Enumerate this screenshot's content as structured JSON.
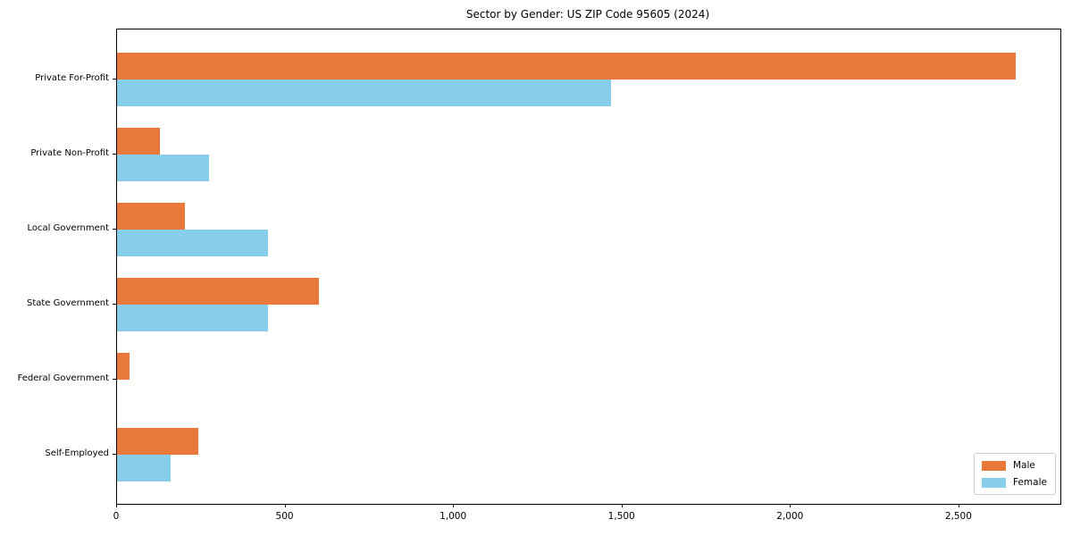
{
  "chart_data": {
    "type": "bar",
    "orientation": "horizontal",
    "title": "Sector by Gender: US ZIP Code 95605 (2024)",
    "categories": [
      "Private For-Profit",
      "Private Non-Profit",
      "Local Government",
      "State Government",
      "Federal Government",
      "Self-Employed"
    ],
    "series": [
      {
        "name": "Male",
        "color": "#E8793A",
        "values": [
          2667,
          126,
          202,
          600,
          37,
          241
        ]
      },
      {
        "name": "Female",
        "color": "#87CEEB",
        "values": [
          1467,
          274,
          449,
          447,
          0,
          159
        ]
      }
    ],
    "xlabel": "",
    "ylabel": "",
    "xlim": [
      0,
      2800
    ],
    "x_tick_values": [
      0,
      500,
      1000,
      1500,
      2000,
      2500
    ],
    "x_tick_labels": [
      "0",
      "500",
      "1,000",
      "1,500",
      "2,000",
      "2,500"
    ],
    "grid": false,
    "legend": {
      "position": "lower right",
      "entries": [
        "Male",
        "Female"
      ]
    }
  }
}
